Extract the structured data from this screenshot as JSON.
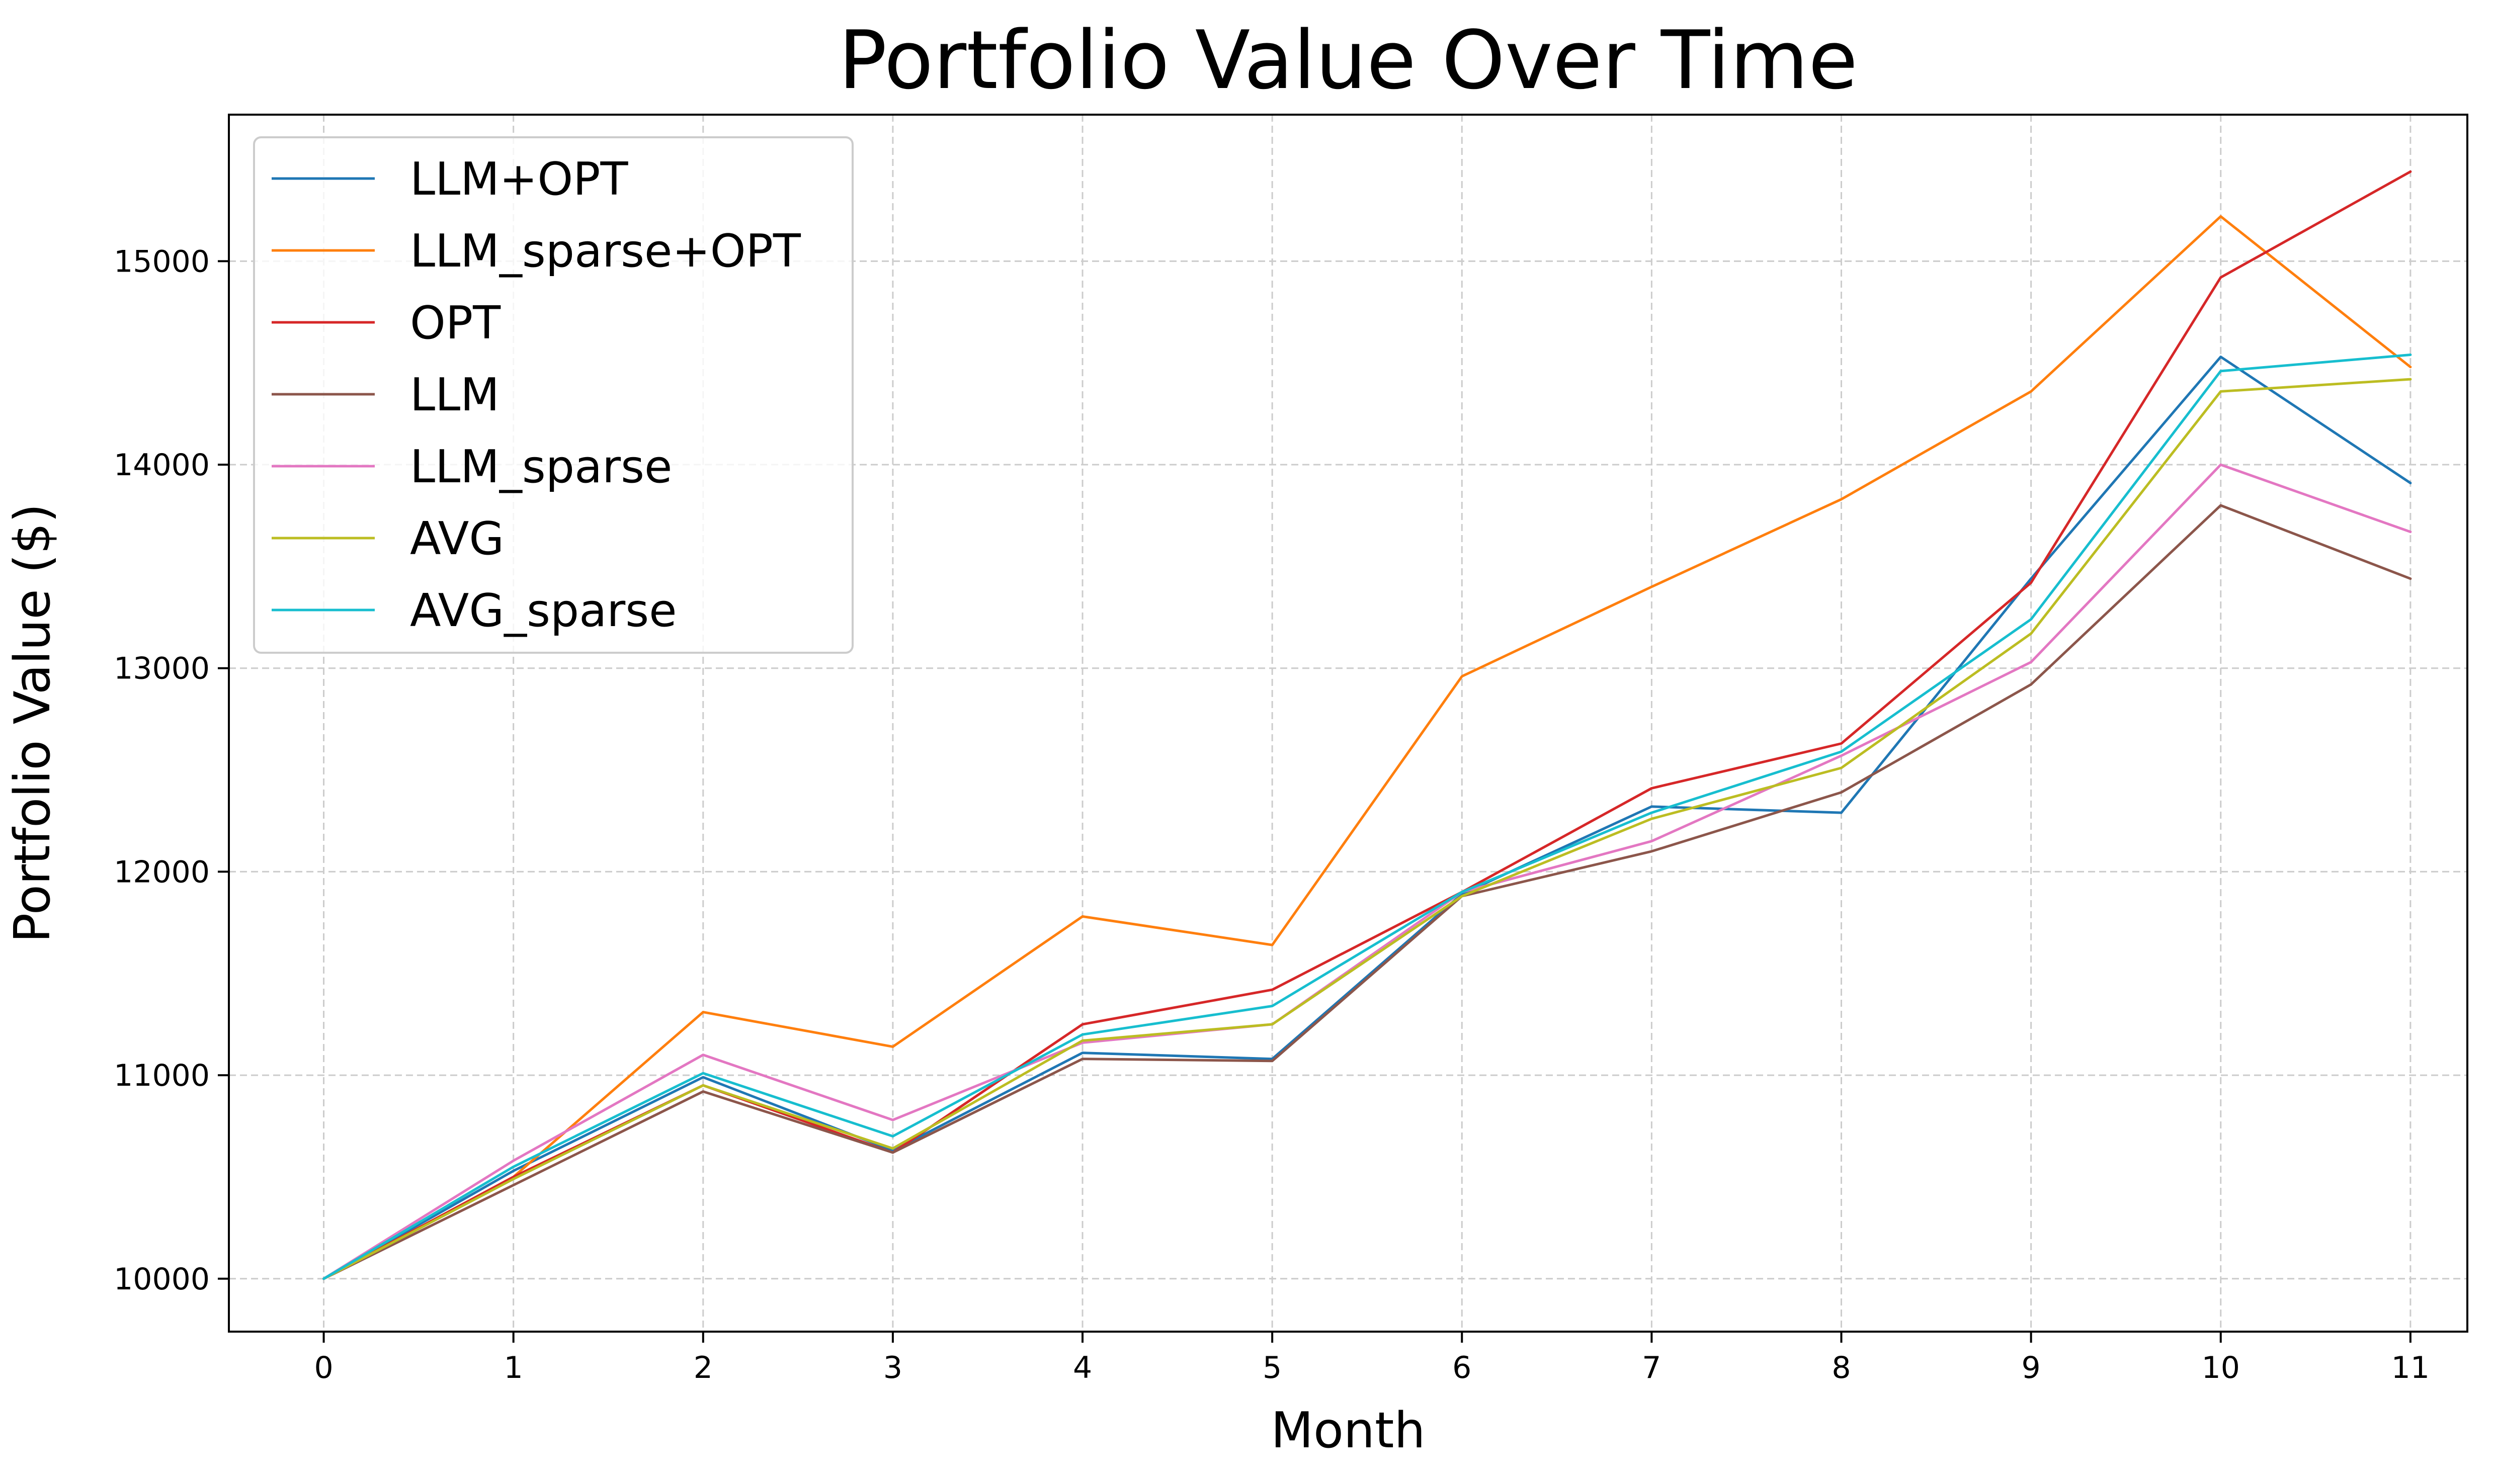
{
  "chart_data": {
    "type": "line",
    "title": "Portfolio Value Over Time",
    "xlabel": "Month",
    "ylabel": "Portfolio Value ($)",
    "x": [
      0,
      1,
      2,
      3,
      4,
      5,
      6,
      7,
      8,
      9,
      10,
      11
    ],
    "x_ticks": [
      "0",
      "1",
      "2",
      "3",
      "4",
      "5",
      "6",
      "7",
      "8",
      "9",
      "10",
      "11"
    ],
    "y_ticks": [
      "10000",
      "11000",
      "12000",
      "13000",
      "14000",
      "15000"
    ],
    "xlim": [
      -0.5,
      11.3
    ],
    "ylim": [
      9740,
      15720
    ],
    "grid": true,
    "legend_position": "top-left",
    "series": [
      {
        "name": "LLM+OPT",
        "color": "#1f77b4",
        "values": [
          10000,
          10530,
          10990,
          10630,
          11110,
          11080,
          11890,
          12320,
          12290,
          13440,
          14530,
          13910
        ]
      },
      {
        "name": "LLM_sparse+OPT",
        "color": "#ff7f0e",
        "values": [
          10000,
          10500,
          11310,
          11140,
          11780,
          11640,
          12960,
          13400,
          13830,
          14360,
          15220,
          14480
        ]
      },
      {
        "name": "OPT",
        "color": "#d62728",
        "values": [
          10000,
          10500,
          10950,
          10620,
          11250,
          11420,
          11900,
          12410,
          12630,
          13420,
          14920,
          15440
        ]
      },
      {
        "name": "LLM",
        "color": "#8c564b",
        "values": [
          10000,
          10460,
          10920,
          10620,
          11080,
          11070,
          11880,
          12100,
          12390,
          12920,
          13800,
          13440
        ]
      },
      {
        "name": "LLM_sparse",
        "color": "#e377c2",
        "values": [
          10000,
          10580,
          11100,
          10780,
          11160,
          11250,
          11900,
          12150,
          12570,
          13030,
          14000,
          13670
        ]
      },
      {
        "name": "AVG",
        "color": "#bcbd22",
        "values": [
          10000,
          10490,
          10950,
          10640,
          11170,
          11250,
          11880,
          12260,
          12510,
          13170,
          14360,
          14420
        ]
      },
      {
        "name": "AVG_sparse",
        "color": "#17becf",
        "values": [
          10000,
          10550,
          11010,
          10700,
          11200,
          11340,
          11900,
          12290,
          12590,
          13240,
          14460,
          14540
        ]
      }
    ]
  }
}
